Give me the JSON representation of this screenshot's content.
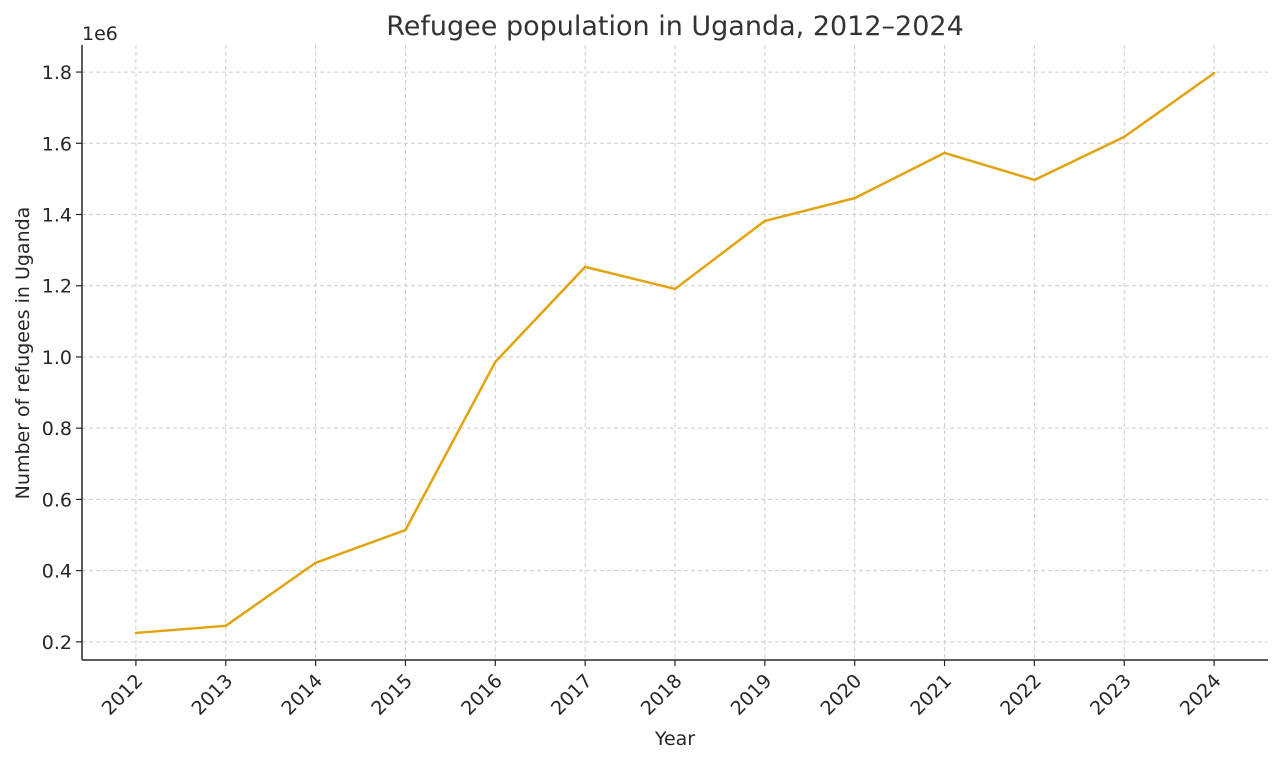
{
  "chart_data": {
    "type": "line",
    "title": "Refugee population in Uganda, 2012–2024",
    "xlabel": "Year",
    "ylabel": "Number of refugees in Uganda",
    "y_offset_label": "1e6",
    "x": [
      2012,
      2013,
      2014,
      2015,
      2016,
      2017,
      2018,
      2019,
      2020,
      2021,
      2022,
      2023,
      2024
    ],
    "x_tick_labels": [
      "2012",
      "2013",
      "2014",
      "2015",
      "2016",
      "2017",
      "2018",
      "2019",
      "2020",
      "2021",
      "2022",
      "2023",
      "2024"
    ],
    "series": [
      {
        "values": [
          225000,
          245000,
          422000,
          514000,
          986000,
          1253000,
          1191000,
          1382000,
          1446000,
          1573000,
          1497000,
          1618000,
          1797000
        ],
        "color": "#E2A30E"
      }
    ],
    "y_ticks": [
      0.2,
      0.4,
      0.6,
      0.8,
      1.0,
      1.2,
      1.4,
      1.6,
      1.8
    ],
    "y_tick_labels": [
      "0.2",
      "0.4",
      "0.6",
      "0.8",
      "1.0",
      "1.2",
      "1.4",
      "1.6",
      "1.8"
    ],
    "xlim": [
      2011.4,
      2024.6
    ],
    "ylim": [
      149000,
      1876000
    ],
    "grid": true,
    "grid_style": "dashed"
  }
}
